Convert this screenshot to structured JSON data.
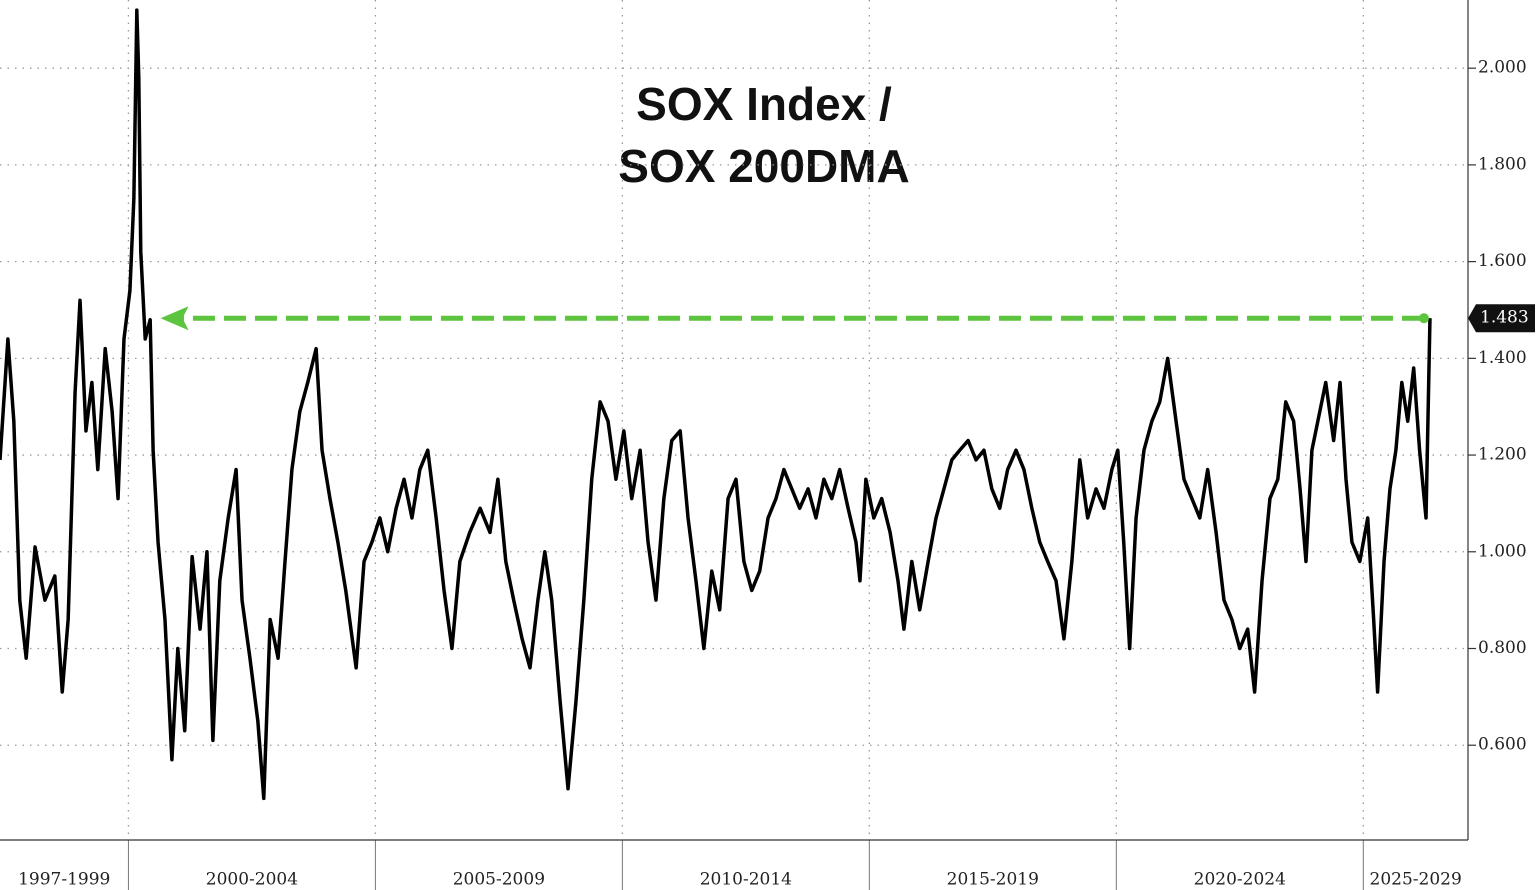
{
  "chart_data": {
    "type": "line",
    "title": [
      "SOX Index /",
      "SOX 200DMA"
    ],
    "xlim": [
      1997.4,
      2027.12
    ],
    "ylim": [
      0.404,
      2.141
    ],
    "xticks": [
      {
        "value": 1997,
        "label": "1997-1999"
      },
      {
        "value": 2000,
        "label": "2000-2004"
      },
      {
        "value": 2005,
        "label": "2005-2009"
      },
      {
        "value": 2010,
        "label": "2010-2014"
      },
      {
        "value": 2015,
        "label": "2015-2019"
      },
      {
        "value": 2020,
        "label": "2020-2024"
      },
      {
        "value": 2025,
        "label": "2025-2029"
      }
    ],
    "yticks": [
      {
        "value": 0.6,
        "label": "0.600"
      },
      {
        "value": 0.8,
        "label": "0.800"
      },
      {
        "value": 1.0,
        "label": "1.000"
      },
      {
        "value": 1.2,
        "label": "1.200"
      },
      {
        "value": 1.4,
        "label": "1.400"
      },
      {
        "value": 1.6,
        "label": "1.600"
      },
      {
        "value": 1.8,
        "label": "1.800"
      },
      {
        "value": 2.0,
        "label": "2.000"
      }
    ],
    "grid": true,
    "arrow": {
      "color": "#5cc43e",
      "to_x": 2000.65
    },
    "series": [
      {
        "color": "#000000",
        "x": [
          1997.4,
          1997.56,
          1997.68,
          1997.8,
          1997.93,
          1998.11,
          1998.31,
          1998.51,
          1998.66,
          1998.78,
          1998.92,
          1999.02,
          1999.14,
          1999.26,
          1999.38,
          1999.53,
          1999.67,
          1999.79,
          1999.91,
          2000.03,
          2000.11,
          2000.17,
          2000.21,
          2000.25,
          2000.34,
          2000.44,
          2000.5,
          2000.6,
          2000.74,
          2000.88,
          2001.0,
          2001.14,
          2001.29,
          2001.45,
          2001.59,
          2001.71,
          2001.85,
          2002.02,
          2002.18,
          2002.3,
          2002.46,
          2002.62,
          2002.74,
          2002.87,
          2003.03,
          2003.17,
          2003.31,
          2003.47,
          2003.63,
          2003.8,
          2003.92,
          2004.08,
          2004.24,
          2004.4,
          2004.61,
          2004.77,
          2004.93,
          2005.09,
          2005.25,
          2005.42,
          2005.58,
          2005.74,
          2005.9,
          2006.06,
          2006.23,
          2006.39,
          2006.55,
          2006.71,
          2006.91,
          2007.12,
          2007.32,
          2007.48,
          2007.64,
          2007.8,
          2007.97,
          2008.13,
          2008.29,
          2008.43,
          2008.57,
          2008.74,
          2008.9,
          2009.06,
          2009.22,
          2009.38,
          2009.55,
          2009.71,
          2009.87,
          2010.03,
          2010.19,
          2010.36,
          2010.52,
          2010.68,
          2010.84,
          2011.0,
          2011.17,
          2011.33,
          2011.49,
          2011.65,
          2011.81,
          2011.97,
          2012.14,
          2012.3,
          2012.46,
          2012.62,
          2012.78,
          2012.95,
          2013.11,
          2013.27,
          2013.43,
          2013.59,
          2013.76,
          2013.92,
          2014.08,
          2014.24,
          2014.4,
          2014.57,
          2014.73,
          2014.81,
          2014.93,
          2015.09,
          2015.25,
          2015.42,
          2015.58,
          2015.7,
          2015.86,
          2016.02,
          2016.19,
          2016.35,
          2016.51,
          2016.67,
          2016.83,
          2017.0,
          2017.16,
          2017.32,
          2017.48,
          2017.64,
          2017.8,
          2017.97,
          2018.13,
          2018.29,
          2018.45,
          2018.61,
          2018.78,
          2018.94,
          2019.1,
          2019.26,
          2019.42,
          2019.59,
          2019.75,
          2019.91,
          2020.03,
          2020.15,
          2020.27,
          2020.4,
          2020.56,
          2020.72,
          2020.88,
          2021.04,
          2021.21,
          2021.37,
          2021.53,
          2021.69,
          2021.85,
          2022.02,
          2022.18,
          2022.34,
          2022.5,
          2022.66,
          2022.8,
          2022.95,
          2023.11,
          2023.27,
          2023.43,
          2023.59,
          2023.72,
          2023.84,
          2023.96,
          2024.08,
          2024.24,
          2024.4,
          2024.53,
          2024.65,
          2024.77,
          2024.93,
          2025.09,
          2025.21,
          2025.29,
          2025.42,
          2025.54,
          2025.66,
          2025.78,
          2025.9,
          2026.02,
          2026.14,
          2026.27,
          2026.35
        ],
        "values": [
          1.19,
          1.44,
          1.27,
          0.9,
          0.78,
          1.01,
          0.9,
          0.95,
          0.71,
          0.86,
          1.33,
          1.52,
          1.25,
          1.35,
          1.17,
          1.42,
          1.29,
          1.11,
          1.44,
          1.54,
          1.73,
          2.12,
          1.98,
          1.62,
          1.44,
          1.48,
          1.21,
          1.02,
          0.86,
          0.57,
          0.8,
          0.63,
          0.99,
          0.84,
          1.0,
          0.61,
          0.94,
          1.07,
          1.17,
          0.9,
          0.78,
          0.65,
          0.49,
          0.86,
          0.78,
          0.98,
          1.17,
          1.29,
          1.35,
          1.42,
          1.21,
          1.11,
          1.02,
          0.92,
          0.76,
          0.98,
          1.02,
          1.07,
          1.0,
          1.09,
          1.15,
          1.07,
          1.17,
          1.21,
          1.07,
          0.92,
          0.8,
          0.98,
          1.04,
          1.09,
          1.04,
          1.15,
          0.98,
          0.9,
          0.82,
          0.76,
          0.9,
          1.0,
          0.9,
          0.69,
          0.51,
          0.69,
          0.9,
          1.15,
          1.31,
          1.27,
          1.15,
          1.25,
          1.11,
          1.21,
          1.02,
          0.9,
          1.11,
          1.23,
          1.25,
          1.07,
          0.94,
          0.8,
          0.96,
          0.88,
          1.11,
          1.15,
          0.98,
          0.92,
          0.96,
          1.07,
          1.11,
          1.17,
          1.13,
          1.09,
          1.13,
          1.07,
          1.15,
          1.11,
          1.17,
          1.09,
          1.02,
          0.94,
          1.15,
          1.07,
          1.11,
          1.04,
          0.94,
          0.84,
          0.98,
          0.88,
          0.98,
          1.07,
          1.13,
          1.19,
          1.21,
          1.23,
          1.19,
          1.21,
          1.13,
          1.09,
          1.17,
          1.21,
          1.17,
          1.09,
          1.02,
          0.98,
          0.94,
          0.82,
          0.98,
          1.19,
          1.07,
          1.13,
          1.09,
          1.17,
          1.21,
          1.02,
          0.8,
          1.07,
          1.21,
          1.27,
          1.31,
          1.4,
          1.27,
          1.15,
          1.11,
          1.07,
          1.17,
          1.04,
          0.9,
          0.86,
          0.8,
          0.84,
          0.71,
          0.94,
          1.11,
          1.15,
          1.31,
          1.27,
          1.13,
          0.98,
          1.21,
          1.27,
          1.35,
          1.23,
          1.35,
          1.15,
          1.02,
          0.98,
          1.07,
          0.86,
          0.71,
          0.98,
          1.13,
          1.21,
          1.35,
          1.27,
          1.38,
          1.21,
          1.07,
          1.483
        ]
      }
    ]
  }
}
